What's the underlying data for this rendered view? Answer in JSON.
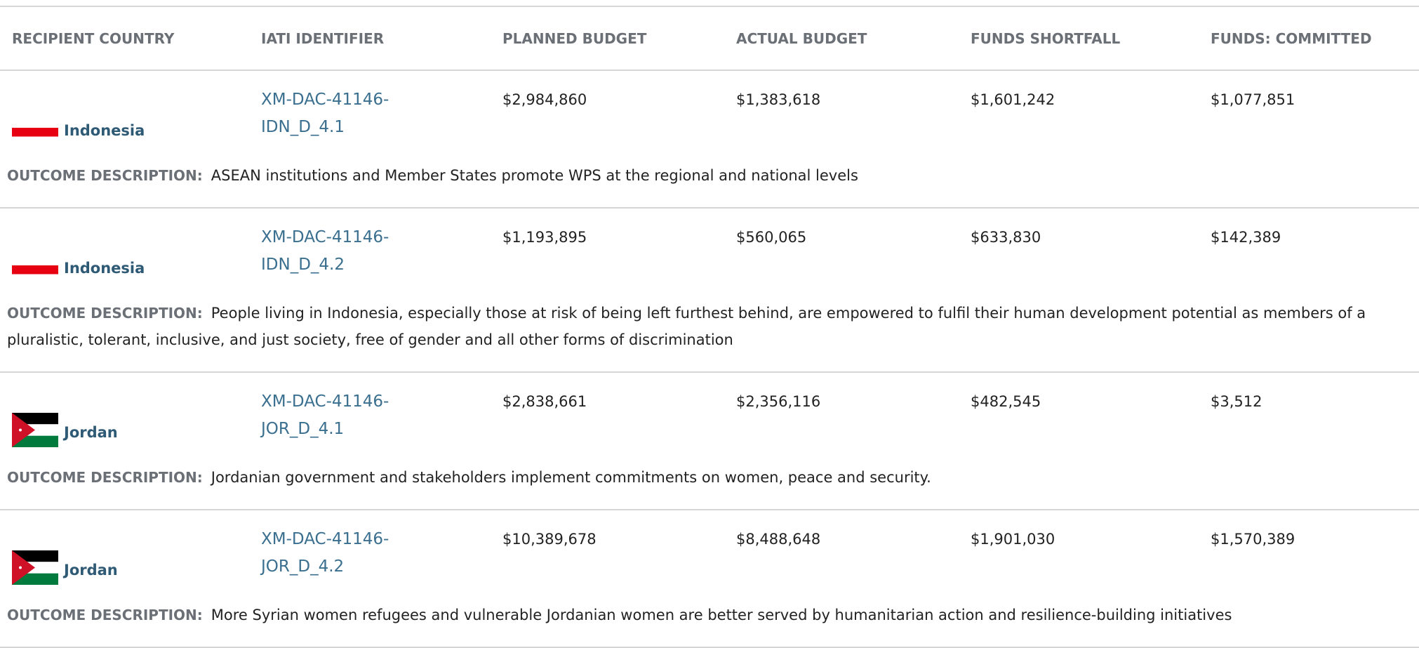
{
  "header": {
    "columns": [
      "RECIPIENT COUNTRY",
      "IATI IDENTIFIER",
      "PLANNED BUDGET",
      "ACTUAL BUDGET",
      "FUNDS SHORTFALL",
      "FUNDS: COMMITTED"
    ]
  },
  "outcome_label": "OUTCOME DESCRIPTION:",
  "rows": [
    {
      "country": "Indonesia",
      "flag": "indonesia",
      "identifier": "XM-DAC-41146-IDN_D_4.1",
      "planned": "$2,984,860",
      "actual": "$1,383,618",
      "shortfall": "$1,601,242",
      "committed": "$1,077,851",
      "outcome": "ASEAN institutions and Member States promote WPS at the regional and national levels"
    },
    {
      "country": "Indonesia",
      "flag": "indonesia",
      "identifier": "XM-DAC-41146-IDN_D_4.2",
      "planned": "$1,193,895",
      "actual": "$560,065",
      "shortfall": "$633,830",
      "committed": "$142,389",
      "outcome": "People living in Indonesia, especially those at risk of being left furthest behind, are empowered to fulfil their human development potential as members of a pluralistic, tolerant, inclusive, and just society, free of gender and all other forms of discrimination"
    },
    {
      "country": "Jordan",
      "flag": "jordan",
      "identifier": "XM-DAC-41146-JOR_D_4.1",
      "planned": "$2,838,661",
      "actual": "$2,356,116",
      "shortfall": "$482,545",
      "committed": "$3,512",
      "outcome": "Jordanian government and stakeholders implement commitments on women, peace and security."
    },
    {
      "country": "Jordan",
      "flag": "jordan",
      "identifier": "XM-DAC-41146-JOR_D_4.2",
      "planned": "$10,389,678",
      "actual": "$8,488,648",
      "shortfall": "$1,901,030",
      "committed": "$1,570,389",
      "outcome": "More Syrian women refugees and vulnerable Jordanian women are better served by humanitarian action and resilience-building initiatives"
    }
  ]
}
